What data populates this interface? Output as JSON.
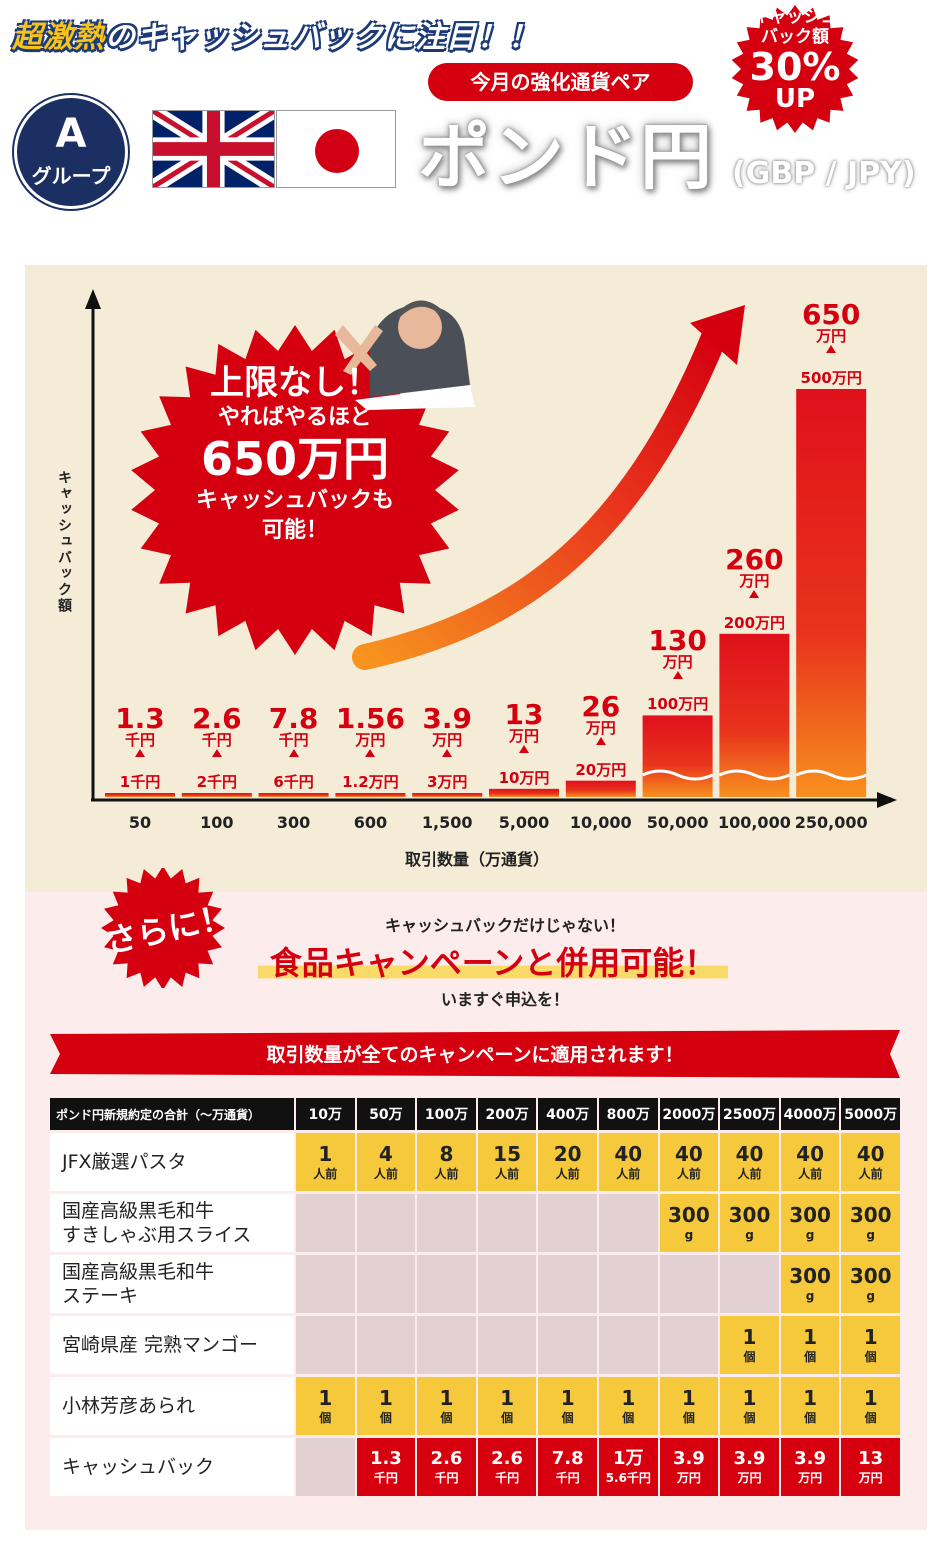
{
  "header": {
    "headline_em": "超激熱",
    "headline_rest": "のキャッシュバックに注目！！",
    "group_letter": "A",
    "group_label": "グループ",
    "pill": "今月の強化通貨ペア",
    "pair_name": "ポンド円",
    "pair_code": "(GBP / JPY)",
    "cashback_badge": {
      "line1": "キャッシュ",
      "line2": "バック額",
      "line3": "30%",
      "line4": "UP"
    }
  },
  "chart_data": {
    "type": "bar",
    "ylabel": "キャッシュバック額",
    "xlabel": "取引数量（万通貨）",
    "categories": [
      "50",
      "100",
      "300",
      "600",
      "1,500",
      "5,000",
      "10,000",
      "50,000",
      "100,000",
      "250,000"
    ],
    "series": [
      {
        "values": [
          1.3,
          2.6,
          7.8,
          15.6,
          39,
          130,
          260,
          1300,
          2600,
          6500
        ]
      },
      {
        "values": [
          1,
          2,
          6,
          12,
          30,
          100,
          200,
          1000,
          2000,
          5000
        ]
      }
    ],
    "labels": [
      {
        "value": "1.3",
        "unit": "千円",
        "base": "1千円"
      },
      {
        "value": "2.6",
        "unit": "千円",
        "base": "2千円"
      },
      {
        "value": "7.8",
        "unit": "千円",
        "base": "6千円"
      },
      {
        "value": "1.56",
        "unit": "万円",
        "base": "1.2万円"
      },
      {
        "value": "3.9",
        "unit": "万円",
        "base": "3万円"
      },
      {
        "value": "13",
        "unit": "万円",
        "base": "10万円"
      },
      {
        "value": "26",
        "unit": "万円",
        "base": "20万円"
      },
      {
        "value": "130",
        "unit": "万円",
        "base": "100万円"
      },
      {
        "value": "260",
        "unit": "万円",
        "base": "200万円"
      },
      {
        "value": "650",
        "unit": "万円",
        "base": "500万円"
      }
    ],
    "callout": {
      "line1": "上限なし！",
      "line2": "やればやるほど",
      "line3": "650万円",
      "line4": "キャッシュバックも",
      "line5": "可能！"
    }
  },
  "promo": {
    "burst": "さらに！",
    "top": "キャッシュバックだけじゃない！",
    "main": "食品キャンペーンと併用可能！",
    "bottom": "いますぐ申込を！",
    "banner": "取引数量が全てのキャンペーンに適用されます！"
  },
  "table": {
    "corner": "ポンド円新規約定の合計（〜万通貨）",
    "columns": [
      "10万",
      "50万",
      "100万",
      "200万",
      "400万",
      "800万",
      "2000万",
      "2500万",
      "4000万",
      "5000万"
    ],
    "rows": [
      {
        "name": "JFX厳選パスタ",
        "cells": [
          [
            "1",
            "人前"
          ],
          [
            "4",
            "人前"
          ],
          [
            "8",
            "人前"
          ],
          [
            "15",
            "人前"
          ],
          [
            "20",
            "人前"
          ],
          [
            "40",
            "人前"
          ],
          [
            "40",
            "人前"
          ],
          [
            "40",
            "人前"
          ],
          [
            "40",
            "人前"
          ],
          [
            "40",
            "人前"
          ]
        ]
      },
      {
        "name": "国産高級黒毛和牛\nすきしゃぶ用スライス",
        "cells": [
          null,
          null,
          null,
          null,
          null,
          null,
          [
            "300",
            "g"
          ],
          [
            "300",
            "g"
          ],
          [
            "300",
            "g"
          ],
          [
            "300",
            "g"
          ]
        ]
      },
      {
        "name": "国産高級黒毛和牛\nステーキ",
        "cells": [
          null,
          null,
          null,
          null,
          null,
          null,
          null,
          null,
          [
            "300",
            "g"
          ],
          [
            "300",
            "g"
          ]
        ]
      },
      {
        "name": "宮崎県産 完熟マンゴー",
        "cells": [
          null,
          null,
          null,
          null,
          null,
          null,
          null,
          [
            "1",
            "個"
          ],
          [
            "1",
            "個"
          ],
          [
            "1",
            "個"
          ]
        ]
      },
      {
        "name": "小林芳彦あられ",
        "cells": [
          [
            "1",
            "個"
          ],
          [
            "1",
            "個"
          ],
          [
            "1",
            "個"
          ],
          [
            "1",
            "個"
          ],
          [
            "1",
            "個"
          ],
          [
            "1",
            "個"
          ],
          [
            "1",
            "個"
          ],
          [
            "1",
            "個"
          ],
          [
            "1",
            "個"
          ],
          [
            "1",
            "個"
          ]
        ]
      },
      {
        "name": "キャッシュバック",
        "cashback": true,
        "cells": [
          null,
          [
            "1.3",
            "千円"
          ],
          [
            "2.6",
            "千円"
          ],
          [
            "2.6",
            "千円"
          ],
          [
            "7.8",
            "千円"
          ],
          [
            "1万",
            "5.6千円"
          ],
          [
            "3.9",
            "万円"
          ],
          [
            "3.9",
            "万円"
          ],
          [
            "3.9",
            "万円"
          ],
          [
            "13",
            "万円"
          ]
        ]
      }
    ]
  },
  "colors": {
    "red": "#d4000f",
    "navy": "#1b2f63",
    "yellow": "#f6c93d",
    "cream": "#f5ecd8",
    "pink": "#fdecec"
  }
}
